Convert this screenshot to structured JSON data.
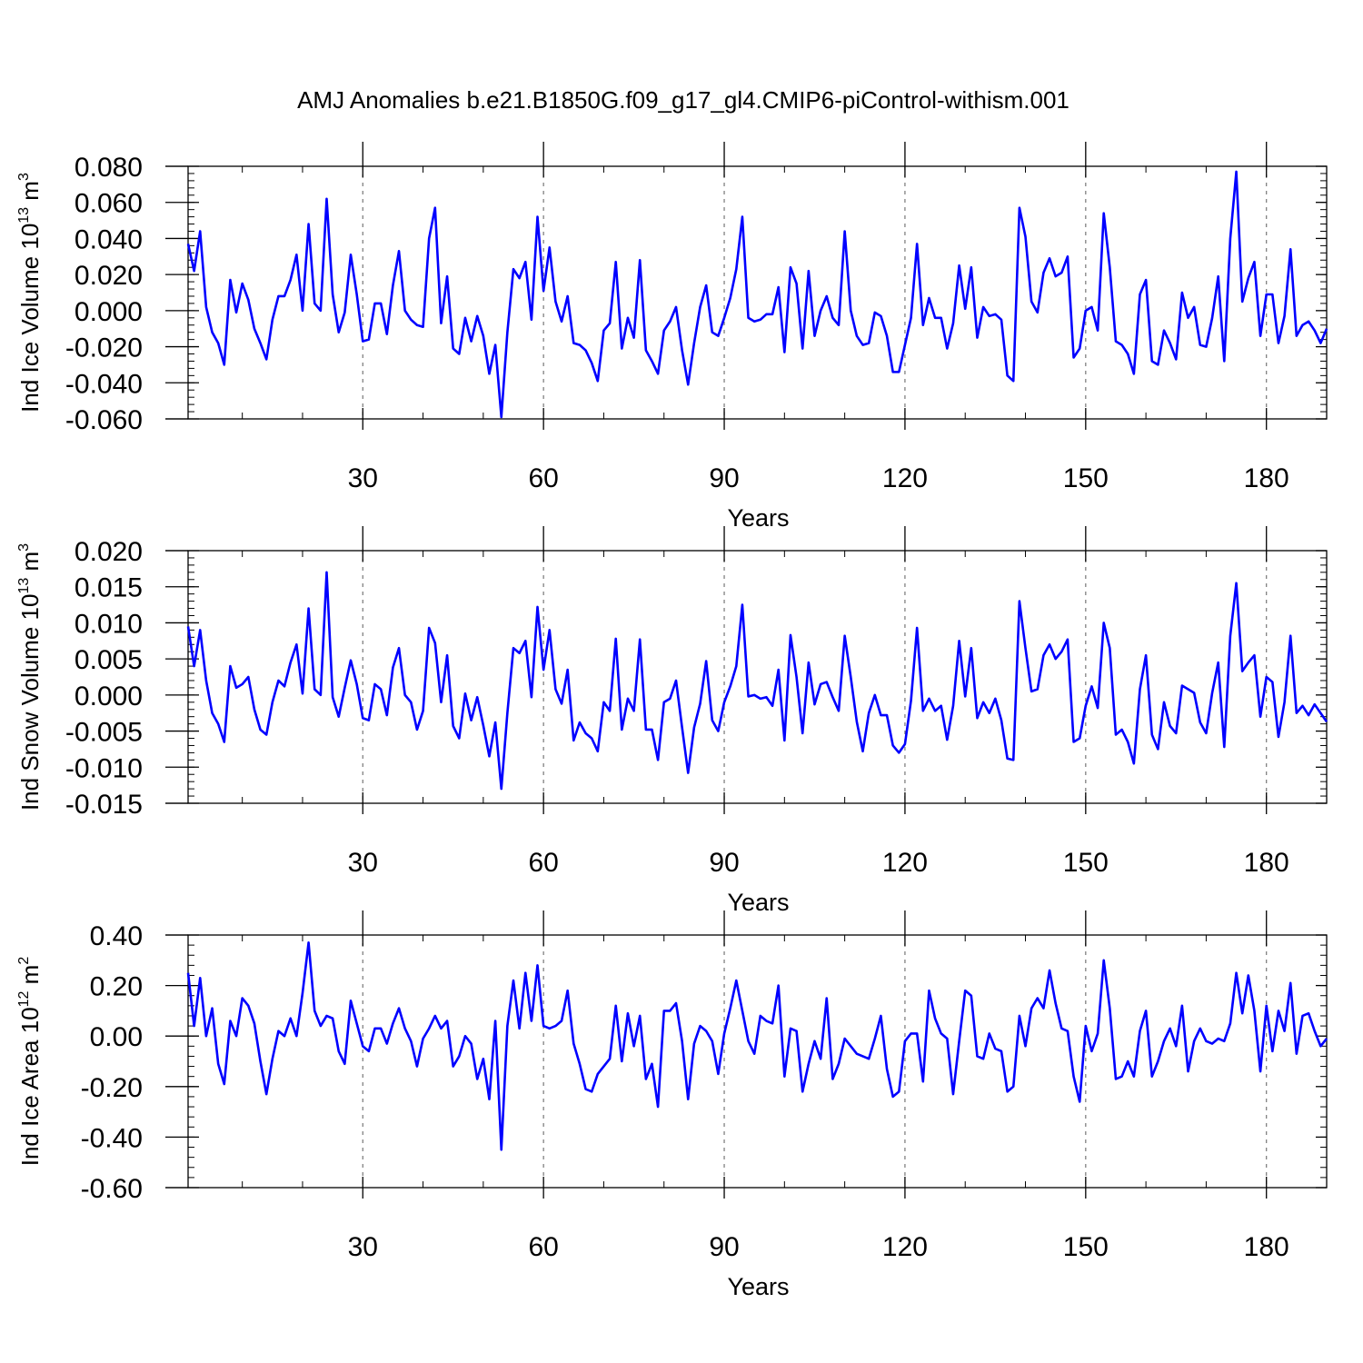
{
  "figure": {
    "title": "AMJ Anomalies b.e21.B1850G.f09_g17_gl4.CMIP6-piControl-withism.001",
    "line_color": "#0000ff"
  },
  "chart_data": [
    {
      "type": "line",
      "title": "AMJ Anomalies b.e21.B1850G.f09_g17_gl4.CMIP6-piControl-withism.001",
      "xlabel": "Years",
      "ylabel": {
        "prefix": "Ind Ice Volume 10",
        "exp": "13",
        "unit": " m",
        "unit_exp": "3"
      },
      "xlim": [
        1,
        190
      ],
      "ylim": [
        -0.06,
        0.08
      ],
      "xticks": [
        30,
        60,
        90,
        120,
        150,
        180
      ],
      "xtick_labels": [
        "30",
        "60",
        "90",
        "120",
        "150",
        "180"
      ],
      "yticks": [
        -0.06,
        -0.04,
        -0.02,
        0.0,
        0.02,
        0.04,
        0.06,
        0.08
      ],
      "ytick_labels": [
        "-0.060",
        "-0.040",
        "-0.020",
        "0.000",
        "0.020",
        "0.040",
        "0.060",
        "0.080"
      ],
      "y_minor_step": 0.004,
      "grid": "vertical dashed at major x ticks",
      "series": [
        {
          "name": "Ind Ice Volume",
          "x_start": 1,
          "values": [
            0.037,
            0.022,
            0.044,
            0.002,
            -0.012,
            -0.018,
            -0.03,
            0.017,
            -0.001,
            0.015,
            0.006,
            -0.01,
            -0.018,
            -0.027,
            -0.005,
            0.008,
            0.008,
            0.017,
            0.031,
            0.0,
            0.048,
            0.004,
            0.0,
            0.062,
            0.009,
            -0.012,
            -0.001,
            0.031,
            0.009,
            -0.017,
            -0.016,
            0.004,
            0.004,
            -0.013,
            0.014,
            0.033,
            0.0,
            -0.005,
            -0.008,
            -0.009,
            0.04,
            0.057,
            -0.007,
            0.019,
            -0.021,
            -0.024,
            -0.004,
            -0.017,
            -0.003,
            -0.014,
            -0.035,
            -0.019,
            -0.059,
            -0.012,
            0.023,
            0.018,
            0.027,
            -0.005,
            0.052,
            0.011,
            0.035,
            0.005,
            -0.006,
            0.008,
            -0.018,
            -0.019,
            -0.022,
            -0.029,
            -0.039,
            -0.011,
            -0.007,
            0.027,
            -0.021,
            -0.004,
            -0.015,
            0.028,
            -0.022,
            -0.028,
            -0.035,
            -0.011,
            -0.006,
            0.002,
            -0.022,
            -0.041,
            -0.018,
            0.002,
            0.014,
            -0.012,
            -0.014,
            -0.004,
            0.007,
            0.023,
            0.052,
            -0.004,
            -0.006,
            -0.005,
            -0.002,
            -0.002,
            0.013,
            -0.023,
            0.024,
            0.015,
            -0.021,
            0.022,
            -0.014,
            0.0,
            0.008,
            -0.004,
            -0.008,
            0.044,
            0.0,
            -0.014,
            -0.019,
            -0.018,
            -0.001,
            -0.003,
            -0.014,
            -0.034,
            -0.034,
            -0.019,
            -0.004,
            0.037,
            -0.008,
            0.007,
            -0.004,
            -0.004,
            -0.021,
            -0.007,
            0.025,
            0.001,
            0.024,
            -0.015,
            0.002,
            -0.003,
            -0.002,
            -0.005,
            -0.036,
            -0.039,
            0.057,
            0.041,
            0.005,
            -0.001,
            0.021,
            0.029,
            0.019,
            0.021,
            0.03,
            -0.026,
            -0.021,
            0.0,
            0.002,
            -0.011,
            0.054,
            0.024,
            -0.017,
            -0.019,
            -0.024,
            -0.035,
            0.009,
            0.017,
            -0.028,
            -0.03,
            -0.011,
            -0.018,
            -0.027,
            0.01,
            -0.004,
            0.002,
            -0.019,
            -0.02,
            -0.004,
            0.019,
            -0.028,
            0.04,
            0.077,
            0.005,
            0.018,
            0.027,
            -0.014,
            0.009,
            0.009,
            -0.018,
            -0.003,
            0.034,
            -0.014,
            -0.008,
            -0.006,
            -0.011,
            -0.018,
            -0.01
          ]
        }
      ]
    },
    {
      "type": "line",
      "xlabel": "Years",
      "ylabel": {
        "prefix": "Ind Snow Volume 10",
        "exp": "13",
        "unit": " m",
        "unit_exp": "3"
      },
      "xlim": [
        1,
        190
      ],
      "ylim": [
        -0.015,
        0.02
      ],
      "xticks": [
        30,
        60,
        90,
        120,
        150,
        180
      ],
      "xtick_labels": [
        "30",
        "60",
        "90",
        "120",
        "150",
        "180"
      ],
      "yticks": [
        -0.015,
        -0.01,
        -0.005,
        0.0,
        0.005,
        0.01,
        0.015,
        0.02
      ],
      "ytick_labels": [
        "-0.015",
        "-0.010",
        "-0.005",
        "0.000",
        "0.005",
        "0.010",
        "0.015",
        "0.020"
      ],
      "y_minor_step": 0.001,
      "grid": "vertical dashed at major x ticks",
      "series": [
        {
          "name": "Ind Snow Volume",
          "x_start": 1,
          "values": [
            0.0095,
            0.004,
            0.009,
            0.002,
            -0.0025,
            -0.004,
            -0.0065,
            0.004,
            0.001,
            0.0015,
            0.0025,
            -0.002,
            -0.0048,
            -0.0055,
            -0.001,
            0.002,
            0.0012,
            0.0045,
            0.007,
            0.0002,
            0.012,
            0.0008,
            0.0,
            0.017,
            -0.0003,
            -0.003,
            0.001,
            0.0048,
            0.0015,
            -0.0032,
            -0.0035,
            0.0015,
            0.0008,
            -0.0028,
            0.0038,
            0.0065,
            0.0,
            -0.001,
            -0.0048,
            -0.0022,
            0.0093,
            0.0072,
            -0.001,
            0.0055,
            -0.0043,
            -0.006,
            0.0002,
            -0.0035,
            -0.0003,
            -0.0042,
            -0.0085,
            -0.0038,
            -0.013,
            -0.0025,
            0.0065,
            0.0058,
            0.0075,
            -0.0003,
            0.0122,
            0.0035,
            0.009,
            0.0008,
            -0.0012,
            0.0035,
            -0.0063,
            -0.0038,
            -0.0053,
            -0.006,
            -0.0078,
            -0.001,
            -0.0022,
            0.0078,
            -0.0048,
            -0.0005,
            -0.0022,
            0.0077,
            -0.0048,
            -0.0048,
            -0.009,
            -0.001,
            -0.0005,
            0.002,
            -0.0045,
            -0.0108,
            -0.0045,
            -0.0012,
            0.0047,
            -0.0035,
            -0.005,
            -0.001,
            0.0012,
            0.004,
            0.0125,
            -0.0002,
            0.0,
            -0.0005,
            -0.0003,
            -0.0015,
            0.0035,
            -0.0063,
            0.0083,
            0.0025,
            -0.0053,
            0.0045,
            -0.0013,
            0.0015,
            0.0018,
            -0.0003,
            -0.0022,
            0.0082,
            0.0025,
            -0.0037,
            -0.0078,
            -0.0025,
            0.0,
            -0.0028,
            -0.0028,
            -0.007,
            -0.008,
            -0.0068,
            -0.0008,
            0.0093,
            -0.0022,
            -0.0005,
            -0.0022,
            -0.0015,
            -0.0062,
            -0.0015,
            0.0075,
            -0.0002,
            0.0065,
            -0.0032,
            -0.001,
            -0.0025,
            -0.0005,
            -0.0035,
            -0.0088,
            -0.009,
            0.013,
            0.0065,
            0.0005,
            0.0008,
            0.0055,
            0.007,
            0.005,
            0.006,
            0.0077,
            -0.0065,
            -0.006,
            -0.0015,
            0.0012,
            -0.0018,
            0.01,
            0.0065,
            -0.0055,
            -0.0048,
            -0.0065,
            -0.0095,
            0.0008,
            0.0055,
            -0.0055,
            -0.0075,
            -0.001,
            -0.0043,
            -0.0053,
            0.0013,
            0.0008,
            0.0003,
            -0.0038,
            -0.0053,
            0.0003,
            0.0045,
            -0.0072,
            0.0082,
            0.0155,
            0.0033,
            0.0045,
            0.0055,
            -0.003,
            0.0025,
            0.0018,
            -0.0058,
            -0.001,
            0.0082,
            -0.0025,
            -0.0015,
            -0.0028,
            -0.0013,
            -0.0025,
            -0.0037
          ]
        }
      ]
    },
    {
      "type": "line",
      "xlabel": "Years",
      "ylabel": {
        "prefix": "Ind Ice Area 10",
        "exp": "12",
        "unit": " m",
        "unit_exp": "2"
      },
      "xlim": [
        1,
        190
      ],
      "ylim": [
        -0.6,
        0.4
      ],
      "xticks": [
        30,
        60,
        90,
        120,
        150,
        180
      ],
      "xtick_labels": [
        "30",
        "60",
        "90",
        "120",
        "150",
        "180"
      ],
      "yticks": [
        -0.6,
        -0.4,
        -0.2,
        0.0,
        0.2,
        0.4
      ],
      "ytick_labels": [
        "-0.60",
        "-0.40",
        "-0.20",
        "0.00",
        "0.20",
        "0.40"
      ],
      "y_minor_step": 0.04,
      "grid": "vertical dashed at major x ticks",
      "series": [
        {
          "name": "Ind Ice Area",
          "x_start": 1,
          "values": [
            0.25,
            0.04,
            0.23,
            0.0,
            0.11,
            -0.11,
            -0.19,
            0.06,
            0.0,
            0.15,
            0.12,
            0.05,
            -0.1,
            -0.23,
            -0.09,
            0.02,
            0.0,
            0.07,
            0.0,
            0.17,
            0.37,
            0.1,
            0.04,
            0.08,
            0.07,
            -0.06,
            -0.11,
            0.14,
            0.05,
            -0.04,
            -0.06,
            0.03,
            0.03,
            -0.03,
            0.05,
            0.11,
            0.03,
            -0.02,
            -0.12,
            -0.01,
            0.03,
            0.08,
            0.03,
            0.06,
            -0.12,
            -0.08,
            0.0,
            -0.03,
            -0.17,
            -0.09,
            -0.25,
            0.06,
            -0.45,
            0.04,
            0.22,
            0.03,
            0.25,
            0.06,
            0.28,
            0.04,
            0.03,
            0.04,
            0.06,
            0.18,
            -0.03,
            -0.11,
            -0.21,
            -0.22,
            -0.15,
            -0.12,
            -0.09,
            0.12,
            -0.1,
            0.09,
            -0.04,
            0.08,
            -0.17,
            -0.11,
            -0.28,
            0.1,
            0.1,
            0.13,
            -0.02,
            -0.25,
            -0.03,
            0.04,
            0.02,
            -0.02,
            -0.15,
            0.01,
            0.11,
            0.22,
            0.1,
            -0.02,
            -0.07,
            0.08,
            0.06,
            0.05,
            0.2,
            -0.16,
            0.03,
            0.02,
            -0.22,
            -0.11,
            -0.02,
            -0.09,
            0.15,
            -0.17,
            -0.11,
            -0.01,
            -0.04,
            -0.07,
            -0.08,
            -0.09,
            -0.01,
            0.08,
            -0.13,
            -0.24,
            -0.22,
            -0.02,
            0.01,
            0.01,
            -0.18,
            0.18,
            0.07,
            0.01,
            -0.01,
            -0.23,
            -0.02,
            0.18,
            0.16,
            -0.08,
            -0.09,
            0.01,
            -0.05,
            -0.06,
            -0.22,
            -0.2,
            0.08,
            -0.04,
            0.11,
            0.15,
            0.11,
            0.26,
            0.13,
            0.03,
            0.02,
            -0.16,
            -0.26,
            0.04,
            -0.06,
            0.01,
            0.3,
            0.11,
            -0.17,
            -0.16,
            -0.1,
            -0.16,
            0.02,
            0.1,
            -0.16,
            -0.1,
            -0.02,
            0.03,
            -0.04,
            0.12,
            -0.14,
            -0.02,
            0.03,
            -0.02,
            -0.03,
            -0.01,
            -0.02,
            0.05,
            0.25,
            0.09,
            0.24,
            0.1,
            -0.14,
            0.12,
            -0.06,
            0.1,
            0.02,
            0.21,
            -0.07,
            0.08,
            0.09,
            0.02,
            -0.04,
            -0.01
          ]
        }
      ]
    }
  ]
}
